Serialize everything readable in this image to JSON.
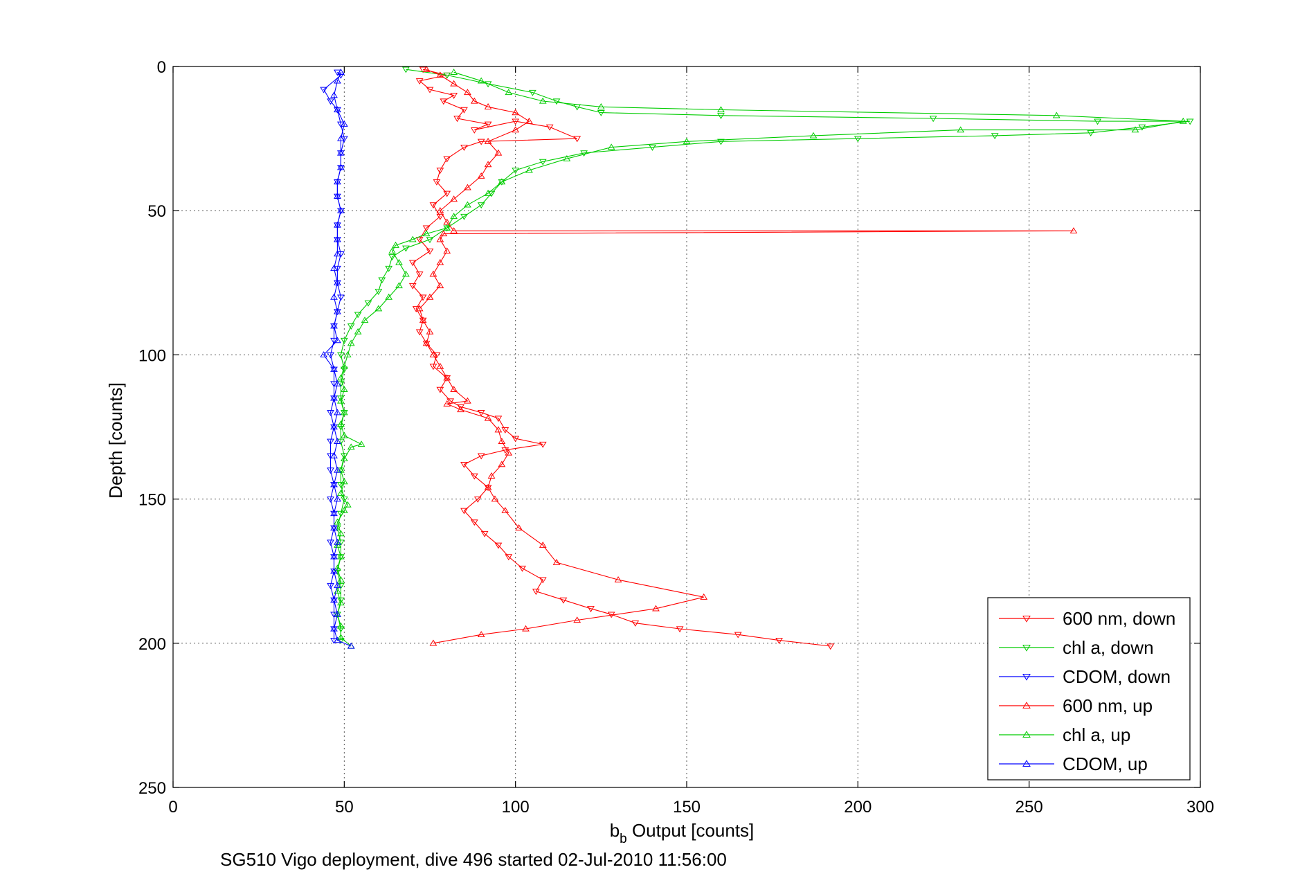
{
  "chart_data": {
    "type": "line",
    "title": "",
    "caption": "SG510 Vigo deployment, dive 496 started 02-Jul-2010 11:56:00",
    "xlabel_main": "b",
    "xlabel_sub": "b",
    "xlabel_rest": " Output [counts]",
    "ylabel": "Depth [counts]",
    "xlim": [
      0,
      300
    ],
    "ylim": [
      0,
      250
    ],
    "y_reversed": true,
    "grid": true,
    "legend_position": "bottom-right",
    "x_ticks": [
      "0",
      "50",
      "100",
      "150",
      "200",
      "250",
      "300"
    ],
    "y_ticks": [
      "0",
      "50",
      "100",
      "150",
      "200",
      "250"
    ],
    "series": [
      {
        "name": "600 nm, down",
        "color": "#ff0000",
        "marker": "triangle-down",
        "points": [
          [
            73,
            1
          ],
          [
            80,
            3
          ],
          [
            72,
            5
          ],
          [
            75,
            8
          ],
          [
            82,
            10
          ],
          [
            79,
            12
          ],
          [
            85,
            15
          ],
          [
            83,
            18
          ],
          [
            92,
            20
          ],
          [
            88,
            22
          ],
          [
            100,
            19
          ],
          [
            110,
            21
          ],
          [
            118,
            25
          ],
          [
            90,
            26
          ],
          [
            85,
            28
          ],
          [
            80,
            32
          ],
          [
            78,
            36
          ],
          [
            77,
            40
          ],
          [
            80,
            44
          ],
          [
            76,
            48
          ],
          [
            78,
            52
          ],
          [
            74,
            56
          ],
          [
            72,
            60
          ],
          [
            75,
            64
          ],
          [
            70,
            68
          ],
          [
            72,
            72
          ],
          [
            70,
            76
          ],
          [
            73,
            80
          ],
          [
            71,
            84
          ],
          [
            73,
            88
          ],
          [
            72,
            92
          ],
          [
            74,
            96
          ],
          [
            77,
            100
          ],
          [
            76,
            104
          ],
          [
            80,
            108
          ],
          [
            78,
            112
          ],
          [
            81,
            116
          ],
          [
            84,
            118
          ],
          [
            90,
            120
          ],
          [
            95,
            122
          ],
          [
            97,
            126
          ],
          [
            100,
            129
          ],
          [
            108,
            131
          ],
          [
            97,
            133
          ],
          [
            90,
            135
          ],
          [
            85,
            138
          ],
          [
            88,
            142
          ],
          [
            92,
            146
          ],
          [
            89,
            150
          ],
          [
            85,
            154
          ],
          [
            88,
            158
          ],
          [
            91,
            162
          ],
          [
            95,
            166
          ],
          [
            98,
            170
          ],
          [
            102,
            174
          ],
          [
            108,
            178
          ],
          [
            106,
            182
          ],
          [
            114,
            185
          ],
          [
            122,
            188
          ],
          [
            128,
            190
          ],
          [
            135,
            193
          ],
          [
            148,
            195
          ],
          [
            165,
            197
          ],
          [
            177,
            199
          ],
          [
            192,
            201
          ]
        ]
      },
      {
        "name": "chl a, down",
        "color": "#00cc00",
        "marker": "triangle-down",
        "points": [
          [
            68,
            1
          ],
          [
            80,
            3
          ],
          [
            92,
            6
          ],
          [
            105,
            9
          ],
          [
            112,
            12
          ],
          [
            118,
            14
          ],
          [
            125,
            16
          ],
          [
            160,
            17
          ],
          [
            222,
            18
          ],
          [
            270,
            19
          ],
          [
            297,
            19
          ],
          [
            283,
            21
          ],
          [
            268,
            23
          ],
          [
            240,
            24
          ],
          [
            200,
            25
          ],
          [
            160,
            26
          ],
          [
            140,
            28
          ],
          [
            120,
            30
          ],
          [
            108,
            33
          ],
          [
            100,
            36
          ],
          [
            96,
            40
          ],
          [
            93,
            44
          ],
          [
            90,
            48
          ],
          [
            85,
            52
          ],
          [
            80,
            56
          ],
          [
            75,
            60
          ],
          [
            68,
            63
          ],
          [
            64,
            66
          ],
          [
            63,
            70
          ],
          [
            61,
            74
          ],
          [
            60,
            78
          ],
          [
            57,
            82
          ],
          [
            54,
            86
          ],
          [
            52,
            90
          ],
          [
            50,
            95
          ],
          [
            49,
            100
          ],
          [
            50,
            105
          ],
          [
            49,
            110
          ],
          [
            49,
            115
          ],
          [
            50,
            120
          ],
          [
            49,
            125
          ],
          [
            49,
            130
          ],
          [
            50,
            135
          ],
          [
            49,
            140
          ],
          [
            49,
            145
          ],
          [
            50,
            150
          ],
          [
            49,
            155
          ],
          [
            48,
            160
          ],
          [
            49,
            165
          ],
          [
            49,
            170
          ],
          [
            48,
            175
          ],
          [
            49,
            180
          ],
          [
            49,
            185
          ],
          [
            48,
            190
          ],
          [
            49,
            195
          ],
          [
            49,
            199
          ]
        ]
      },
      {
        "name": "CDOM, down",
        "color": "#0000ff",
        "marker": "triangle-down",
        "points": [
          [
            48,
            2
          ],
          [
            49,
            3
          ],
          [
            44,
            8
          ],
          [
            46,
            12
          ],
          [
            48,
            15
          ],
          [
            49,
            20
          ],
          [
            50,
            25
          ],
          [
            49,
            30
          ],
          [
            49,
            35
          ],
          [
            48,
            40
          ],
          [
            48,
            45
          ],
          [
            49,
            50
          ],
          [
            48,
            55
          ],
          [
            48,
            60
          ],
          [
            49,
            65
          ],
          [
            48,
            70
          ],
          [
            48,
            75
          ],
          [
            49,
            80
          ],
          [
            48,
            85
          ],
          [
            47,
            90
          ],
          [
            47,
            95
          ],
          [
            46,
            100
          ],
          [
            47,
            105
          ],
          [
            47,
            110
          ],
          [
            47,
            115
          ],
          [
            46,
            120
          ],
          [
            47,
            125
          ],
          [
            46,
            130
          ],
          [
            46,
            135
          ],
          [
            46,
            140
          ],
          [
            47,
            145
          ],
          [
            46,
            150
          ],
          [
            47,
            155
          ],
          [
            47,
            160
          ],
          [
            46,
            165
          ],
          [
            47,
            170
          ],
          [
            47,
            175
          ],
          [
            46,
            180
          ],
          [
            47,
            185
          ],
          [
            47,
            190
          ],
          [
            47,
            195
          ],
          [
            47,
            199
          ]
        ]
      },
      {
        "name": "600 nm, up",
        "color": "#ff0000",
        "marker": "triangle-up",
        "points": [
          [
            76,
            200
          ],
          [
            90,
            197
          ],
          [
            103,
            195
          ],
          [
            118,
            192
          ],
          [
            141,
            188
          ],
          [
            155,
            184
          ],
          [
            130,
            178
          ],
          [
            112,
            172
          ],
          [
            108,
            166
          ],
          [
            101,
            160
          ],
          [
            97,
            154
          ],
          [
            94,
            150
          ],
          [
            92,
            146
          ],
          [
            93,
            142
          ],
          [
            96,
            138
          ],
          [
            98,
            134
          ],
          [
            96,
            130
          ],
          [
            95,
            126
          ],
          [
            92,
            122
          ],
          [
            84,
            119
          ],
          [
            80,
            117
          ],
          [
            86,
            116
          ],
          [
            82,
            112
          ],
          [
            80,
            108
          ],
          [
            78,
            104
          ],
          [
            76,
            100
          ],
          [
            74,
            96
          ],
          [
            75,
            92
          ],
          [
            73,
            88
          ],
          [
            72,
            84
          ],
          [
            75,
            80
          ],
          [
            78,
            76
          ],
          [
            76,
            72
          ],
          [
            78,
            68
          ],
          [
            80,
            64
          ],
          [
            78,
            60
          ],
          [
            79,
            58
          ],
          [
            263,
            57
          ],
          [
            82,
            57
          ],
          [
            80,
            54
          ],
          [
            78,
            50
          ],
          [
            82,
            46
          ],
          [
            86,
            42
          ],
          [
            90,
            38
          ],
          [
            92,
            34
          ],
          [
            95,
            30
          ],
          [
            92,
            26
          ],
          [
            100,
            22
          ],
          [
            104,
            19
          ],
          [
            100,
            16
          ],
          [
            92,
            14
          ],
          [
            88,
            12
          ],
          [
            86,
            9
          ],
          [
            82,
            6
          ],
          [
            78,
            3
          ],
          [
            74,
            1
          ]
        ]
      },
      {
        "name": "chl a, up",
        "color": "#00cc00",
        "marker": "triangle-up",
        "points": [
          [
            52,
            201
          ],
          [
            49,
            198
          ],
          [
            49,
            194
          ],
          [
            48,
            190
          ],
          [
            49,
            186
          ],
          [
            48,
            182
          ],
          [
            49,
            178
          ],
          [
            48,
            174
          ],
          [
            49,
            170
          ],
          [
            48,
            166
          ],
          [
            49,
            162
          ],
          [
            48,
            158
          ],
          [
            50,
            154
          ],
          [
            51,
            152
          ],
          [
            49,
            148
          ],
          [
            50,
            144
          ],
          [
            49,
            140
          ],
          [
            50,
            136
          ],
          [
            52,
            132
          ],
          [
            55,
            131
          ],
          [
            50,
            128
          ],
          [
            49,
            124
          ],
          [
            50,
            120
          ],
          [
            49,
            116
          ],
          [
            50,
            112
          ],
          [
            49,
            108
          ],
          [
            50,
            104
          ],
          [
            51,
            100
          ],
          [
            52,
            96
          ],
          [
            54,
            92
          ],
          [
            56,
            88
          ],
          [
            60,
            84
          ],
          [
            63,
            80
          ],
          [
            66,
            76
          ],
          [
            68,
            72
          ],
          [
            66,
            68
          ],
          [
            64,
            64
          ],
          [
            65,
            62
          ],
          [
            70,
            60
          ],
          [
            74,
            58
          ],
          [
            80,
            56
          ],
          [
            82,
            52
          ],
          [
            86,
            48
          ],
          [
            92,
            44
          ],
          [
            96,
            40
          ],
          [
            104,
            36
          ],
          [
            115,
            32
          ],
          [
            128,
            28
          ],
          [
            150,
            26
          ],
          [
            187,
            24
          ],
          [
            230,
            22
          ],
          [
            281,
            22
          ],
          [
            295,
            19
          ],
          [
            258,
            17
          ],
          [
            160,
            15
          ],
          [
            125,
            14
          ],
          [
            108,
            12
          ],
          [
            98,
            9
          ],
          [
            90,
            5
          ],
          [
            82,
            2
          ]
        ]
      },
      {
        "name": "CDOM, up",
        "color": "#0000ff",
        "marker": "triangle-up",
        "points": [
          [
            52,
            201
          ],
          [
            48,
            199
          ],
          [
            47,
            195
          ],
          [
            48,
            190
          ],
          [
            47,
            185
          ],
          [
            48,
            180
          ],
          [
            47,
            175
          ],
          [
            47,
            170
          ],
          [
            48,
            165
          ],
          [
            47,
            160
          ],
          [
            47,
            155
          ],
          [
            48,
            150
          ],
          [
            47,
            145
          ],
          [
            48,
            140
          ],
          [
            47,
            135
          ],
          [
            48,
            130
          ],
          [
            47,
            125
          ],
          [
            48,
            120
          ],
          [
            47,
            115
          ],
          [
            48,
            110
          ],
          [
            47,
            105
          ],
          [
            44,
            100
          ],
          [
            48,
            95
          ],
          [
            47,
            90
          ],
          [
            48,
            85
          ],
          [
            47,
            80
          ],
          [
            48,
            75
          ],
          [
            47,
            70
          ],
          [
            48,
            65
          ],
          [
            48,
            60
          ],
          [
            48,
            55
          ],
          [
            49,
            50
          ],
          [
            48,
            45
          ],
          [
            48,
            40
          ],
          [
            49,
            35
          ],
          [
            49,
            30
          ],
          [
            49,
            25
          ],
          [
            50,
            20
          ],
          [
            48,
            15
          ],
          [
            47,
            10
          ],
          [
            48,
            5
          ],
          [
            49,
            2
          ]
        ]
      }
    ]
  }
}
